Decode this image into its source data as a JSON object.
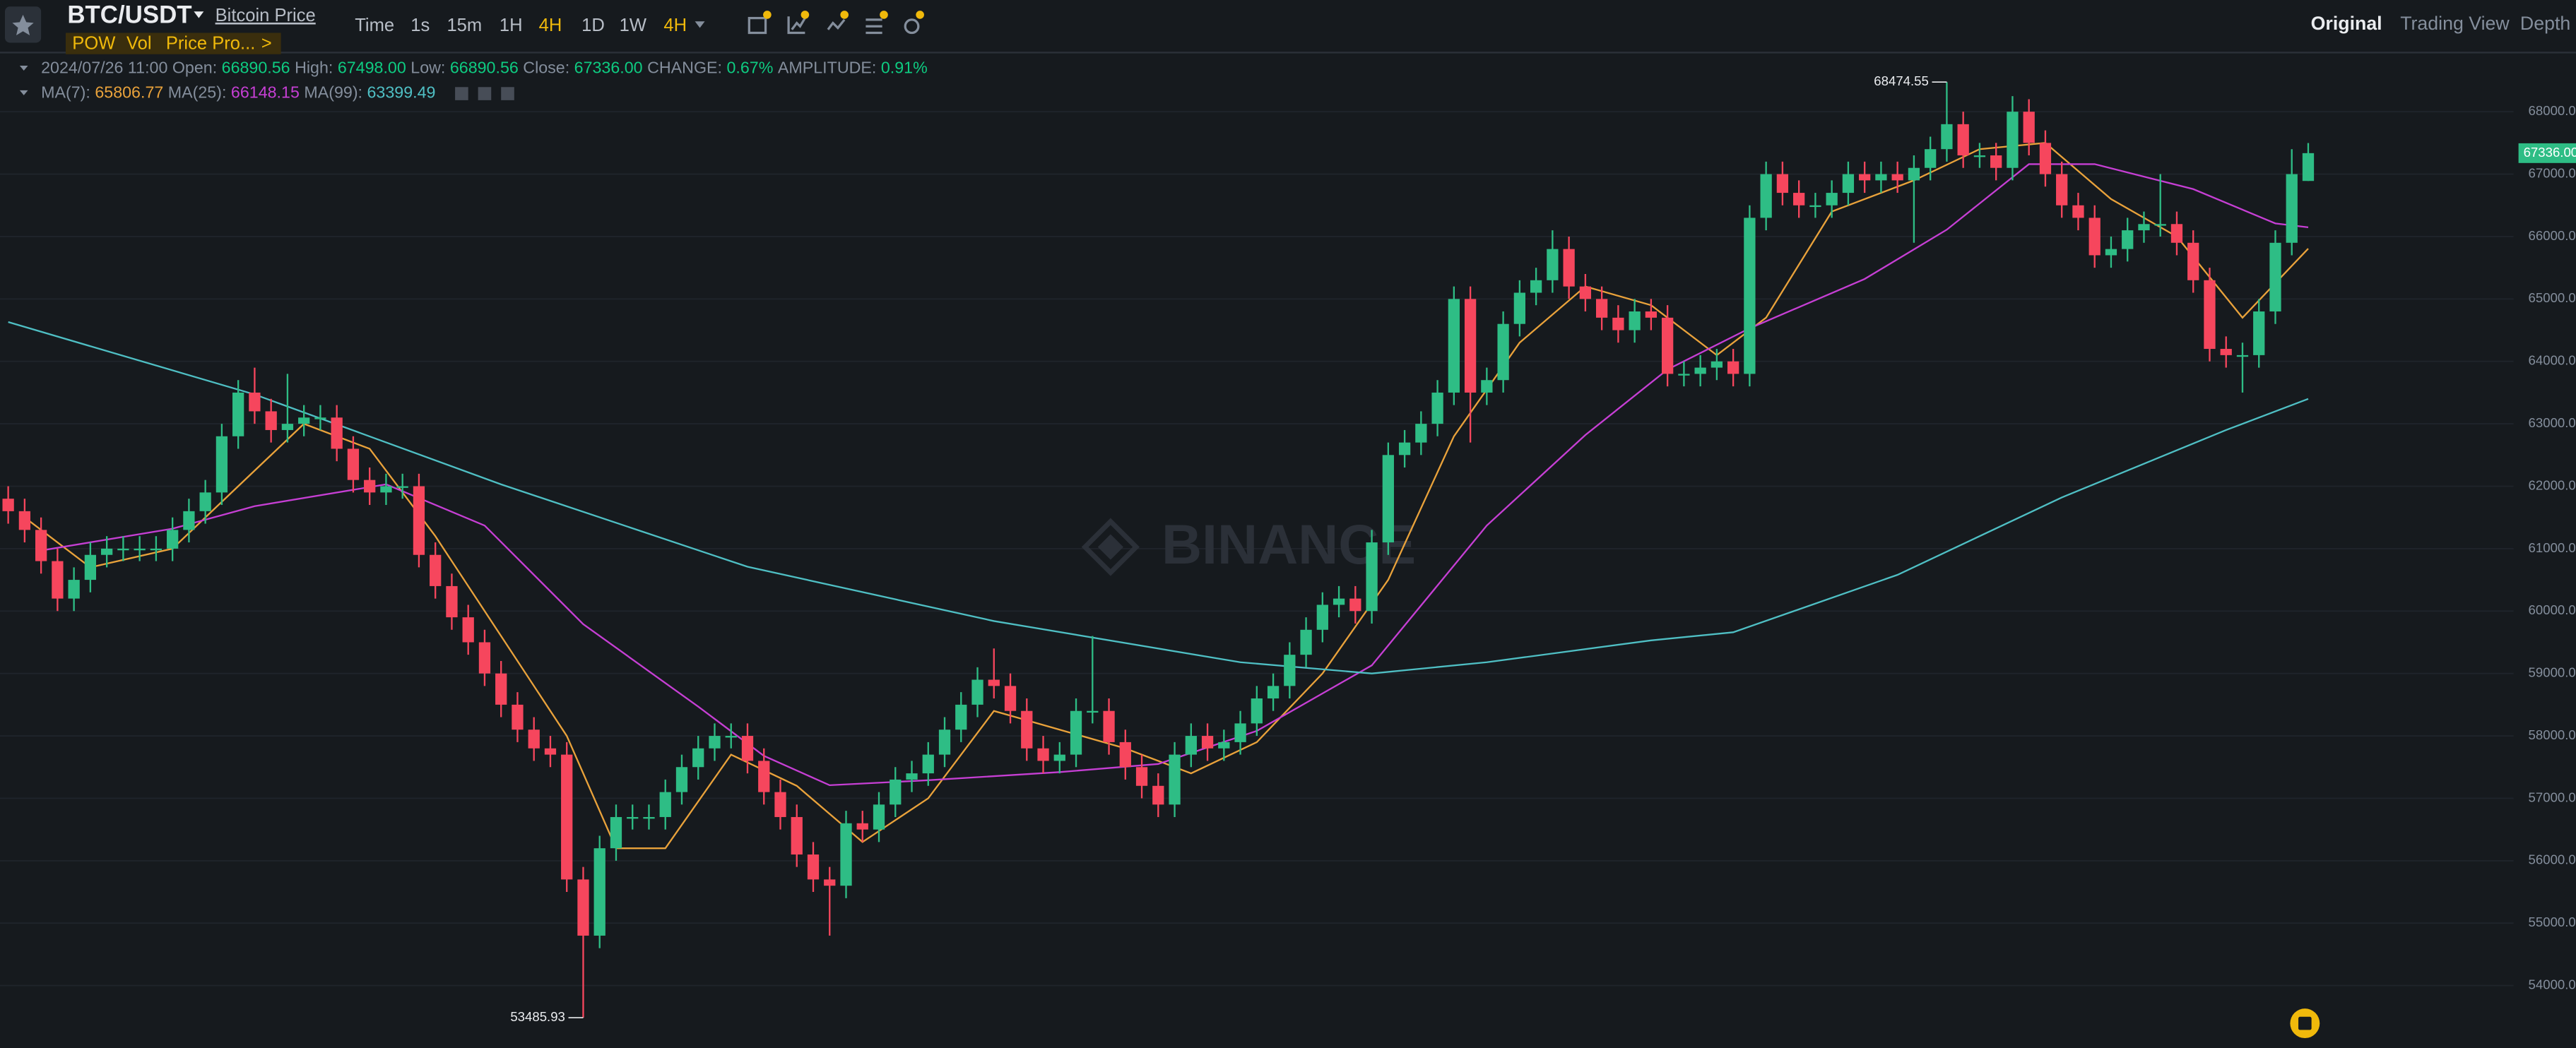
{
  "toolbar": {
    "symbol": "BTC/USDT",
    "link": "Bitcoin Price",
    "intervals": [
      "Time",
      "1s",
      "15m",
      "1H",
      "4H",
      "1D",
      "1W",
      "4H"
    ],
    "tags": [
      "POW",
      "Vol",
      "Price Pro...",
      ">"
    ],
    "views": [
      "Original",
      "Trading View",
      "Depth"
    ]
  },
  "info": {
    "time": "2024/07/26 11:00",
    "fields": [
      {
        "label": "Open:",
        "value": "66890.56"
      },
      {
        "label": "High:",
        "value": "67498.00"
      },
      {
        "label": "Low:",
        "value": "66890.56"
      },
      {
        "label": "Close:",
        "value": "67336.00"
      },
      {
        "label": "CHANGE:",
        "value": "0.67%"
      },
      {
        "label": "AMPLITUDE:",
        "value": "0.91%"
      }
    ]
  },
  "watermark": "BINANCE",
  "chart_data": {
    "type": "candlestick",
    "up_color": "#2ebd85",
    "down_color": "#f6465d",
    "grid": true,
    "ylim": [
      53000,
      69000
    ],
    "yticks": [
      {
        "value": 54000,
        "label": "54000.00"
      },
      {
        "value": 55000,
        "label": "55000.00"
      },
      {
        "value": 56000,
        "label": "56000.00"
      },
      {
        "value": 57000,
        "label": "57000.00"
      },
      {
        "value": 58000,
        "label": "58000.00"
      },
      {
        "value": 59000,
        "label": "59000.00"
      },
      {
        "value": 60000,
        "label": "60000.00"
      },
      {
        "value": 61000,
        "label": "61000.00"
      },
      {
        "value": 62000,
        "label": "62000.00"
      },
      {
        "value": 63000,
        "label": "63000.00"
      },
      {
        "value": 64000,
        "label": "64000.00"
      },
      {
        "value": 65000,
        "label": "65000.00"
      },
      {
        "value": 66000,
        "label": "66000.00"
      },
      {
        "value": 67000,
        "label": "67000.00"
      },
      {
        "value": 68000,
        "label": "68000.00"
      }
    ],
    "open": [
      61800,
      61600,
      61300,
      60800,
      60200,
      60500,
      60900,
      61000,
      61000,
      61000,
      61000,
      61300,
      61600,
      61900,
      62800,
      63500,
      63200,
      62900,
      63000,
      63100,
      63100,
      62600,
      62100,
      61900,
      62000,
      62000,
      60900,
      60400,
      59900,
      59500,
      59000,
      58500,
      58100,
      57800,
      57700,
      55700,
      54800,
      56200,
      56700,
      56700,
      56700,
      57100,
      57500,
      57800,
      58000,
      58000,
      57600,
      57100,
      56700,
      56100,
      55700,
      55600,
      56600,
      56500,
      56900,
      57300,
      57400,
      57700,
      58100,
      58500,
      58900,
      58800,
      58400,
      57800,
      57600,
      57700,
      58400,
      58400,
      57900,
      57500,
      57200,
      56900,
      57700,
      58000,
      57800,
      57900,
      58200,
      58600,
      58800,
      59300,
      59700,
      60100,
      60200,
      60000,
      61100,
      62500,
      62700,
      63000,
      63500,
      65000,
      63500,
      63700,
      64600,
      65100,
      65300,
      65800,
      65200,
      65000,
      64700,
      64500,
      64800,
      64700,
      63800,
      63800,
      63900,
      64000,
      63800,
      66300,
      67000,
      66700,
      66500,
      66500,
      66700,
      67000,
      66900,
      67000,
      66900,
      67100,
      67400,
      67800,
      67300,
      67300,
      67100,
      68000,
      67500,
      67000,
      66500,
      66300,
      65700,
      65800,
      66100,
      66200,
      66200,
      65900,
      65300,
      64200,
      64100,
      64100,
      64800,
      65900,
      66890.56
    ],
    "high": [
      62000,
      61800,
      61500,
      61000,
      60700,
      61100,
      61200,
      61200,
      61200,
      61200,
      61500,
      61800,
      62100,
      63000,
      63700,
      63900,
      63400,
      63800,
      63300,
      63300,
      63300,
      62800,
      62300,
      62200,
      62200,
      62200,
      61100,
      60600,
      60100,
      59700,
      59200,
      58700,
      58300,
      58000,
      57900,
      55900,
      56400,
      56900,
      56900,
      56900,
      57300,
      57700,
      58000,
      58200,
      58200,
      58200,
      57800,
      57300,
      56900,
      56300,
      55900,
      56800,
      56800,
      57100,
      57500,
      57600,
      57900,
      58300,
      58700,
      59100,
      59400,
      59000,
      58600,
      58000,
      57900,
      58600,
      59600,
      58600,
      58100,
      57700,
      57400,
      57900,
      58200,
      58200,
      58100,
      58400,
      58800,
      59000,
      59500,
      59900,
      60300,
      60400,
      60400,
      61300,
      62700,
      62900,
      63200,
      63700,
      65200,
      65200,
      63900,
      64800,
      65300,
      65500,
      66100,
      66000,
      65400,
      65200,
      64900,
      65000,
      65000,
      64900,
      64000,
      64100,
      64200,
      64200,
      66500,
      67200,
      67200,
      66900,
      66700,
      66900,
      67200,
      67200,
      67200,
      67200,
      67300,
      67600,
      68474.55,
      68000,
      67500,
      67500,
      68250,
      68200,
      67700,
      67200,
      66700,
      66500,
      66000,
      66300,
      66400,
      67000,
      66400,
      66100,
      65500,
      64400,
      64300,
      65000,
      66100,
      67400,
      67498
    ],
    "low": [
      61400,
      61100,
      60600,
      60000,
      60000,
      60300,
      60700,
      60800,
      60800,
      60800,
      60800,
      61100,
      61400,
      61700,
      62600,
      63000,
      62700,
      62700,
      62800,
      62900,
      62400,
      61900,
      61700,
      61700,
      61800,
      60700,
      60200,
      59700,
      59300,
      58800,
      58300,
      57900,
      57600,
      57500,
      55500,
      53485.93,
      54600,
      56000,
      56500,
      56500,
      56500,
      56900,
      57300,
      57600,
      57800,
      57400,
      56900,
      56500,
      55900,
      55500,
      54800,
      55400,
      56300,
      56300,
      56700,
      57100,
      57200,
      57500,
      57900,
      58300,
      58600,
      58200,
      57600,
      57400,
      57400,
      57500,
      58200,
      57700,
      57300,
      57000,
      56700,
      56700,
      57500,
      57600,
      57600,
      57700,
      58000,
      58400,
      58600,
      59100,
      59500,
      59900,
      59800,
      59800,
      60900,
      62300,
      62500,
      62800,
      63300,
      62700,
      63300,
      63500,
      64400,
      64900,
      65100,
      65000,
      64800,
      64500,
      64300,
      64300,
      64500,
      63600,
      63600,
      63600,
      63700,
      63600,
      63600,
      66100,
      66500,
      66300,
      66300,
      66300,
      66500,
      66700,
      66700,
      66700,
      65900,
      66900,
      67200,
      67100,
      67100,
      66900,
      66900,
      67300,
      66800,
      66300,
      66100,
      65500,
      65500,
      65600,
      65900,
      66000,
      65700,
      65100,
      64000,
      63900,
      63500,
      63900,
      64600,
      65700,
      66890.56
    ],
    "close": [
      61600,
      61300,
      60800,
      60200,
      60500,
      60900,
      61000,
      61000,
      61000,
      61000,
      61300,
      61600,
      61900,
      62800,
      63500,
      63200,
      62900,
      63000,
      63100,
      63100,
      62600,
      62100,
      61900,
      62000,
      62000,
      60900,
      60400,
      59900,
      59500,
      59000,
      58500,
      58100,
      57800,
      57700,
      55700,
      54800,
      56200,
      56700,
      56700,
      56700,
      57100,
      57500,
      57800,
      58000,
      58000,
      57600,
      57100,
      56700,
      56100,
      55700,
      55600,
      56600,
      56500,
      56900,
      57300,
      57400,
      57700,
      58100,
      58500,
      58900,
      58800,
      58400,
      57800,
      57600,
      57700,
      58400,
      58400,
      57900,
      57500,
      57200,
      56900,
      57700,
      58000,
      57800,
      57900,
      58200,
      58600,
      58800,
      59300,
      59700,
      60100,
      60200,
      60000,
      61100,
      62500,
      62700,
      63000,
      63500,
      65000,
      63500,
      63700,
      64600,
      65100,
      65300,
      65800,
      65200,
      65000,
      64700,
      64500,
      64800,
      64700,
      63800,
      63800,
      63900,
      64000,
      63800,
      66300,
      67000,
      66700,
      66500,
      66500,
      66700,
      67000,
      66900,
      67000,
      66900,
      67100,
      67400,
      67800,
      67300,
      67300,
      67100,
      68000,
      67500,
      67000,
      66500,
      66300,
      65700,
      65800,
      66100,
      66200,
      66200,
      65900,
      65300,
      64200,
      64100,
      64100,
      64800,
      65900,
      67000,
      67336
    ],
    "series": [
      {
        "name": "MA(7):",
        "value_label": "65806.77",
        "color": "#e9a23b",
        "x": [
          1,
          5,
          10,
          14,
          18,
          22,
          26,
          30,
          34,
          37,
          40,
          44,
          48,
          52,
          56,
          60,
          64,
          68,
          72,
          76,
          80,
          84,
          88,
          92,
          96,
          100,
          104,
          107,
          111,
          116,
          120,
          124,
          128,
          132,
          136,
          140
        ],
        "values": [
          61500,
          60700,
          61000,
          62000,
          63000,
          62600,
          61200,
          59600,
          58000,
          56200,
          56200,
          57700,
          57200,
          56300,
          57000,
          58400,
          58100,
          57800,
          57400,
          57900,
          59000,
          60500,
          62800,
          64300,
          65200,
          64900,
          64100,
          64700,
          66400,
          66900,
          67400,
          67500,
          66600,
          66000,
          64700,
          65806.77
        ]
      },
      {
        "name": "MA(25):",
        "value_label": "66148.15",
        "color": "#c63fd4",
        "x": [
          2,
          10,
          15,
          23,
          29,
          35,
          42,
          46,
          50,
          56,
          64,
          70,
          76,
          83,
          90,
          96,
          101,
          106,
          113,
          118,
          123,
          127,
          133,
          138,
          140
        ],
        "values": [
          60970,
          61320,
          61680,
          62030,
          61370,
          59790,
          58470,
          57680,
          57210,
          57290,
          57420,
          57550,
          58080,
          59130,
          61370,
          62820,
          63870,
          64530,
          65320,
          66110,
          67160,
          67160,
          66760,
          66210,
          66148.15
        ]
      },
      {
        "name": "MA(99):",
        "value_label": "63399.49",
        "color": "#4fbfc4",
        "x": [
          0,
          15,
          30,
          45,
          60,
          75,
          83,
          90,
          100,
          105,
          115,
          125,
          135,
          140
        ],
        "values": [
          64630,
          63470,
          62030,
          60710,
          59840,
          59180,
          59000,
          59180,
          59530,
          59660,
          60580,
          61820,
          62900,
          63399.49
        ]
      }
    ],
    "high_label": "68474.55",
    "low_label": "53485.93",
    "last_price_label": "67336.00"
  }
}
